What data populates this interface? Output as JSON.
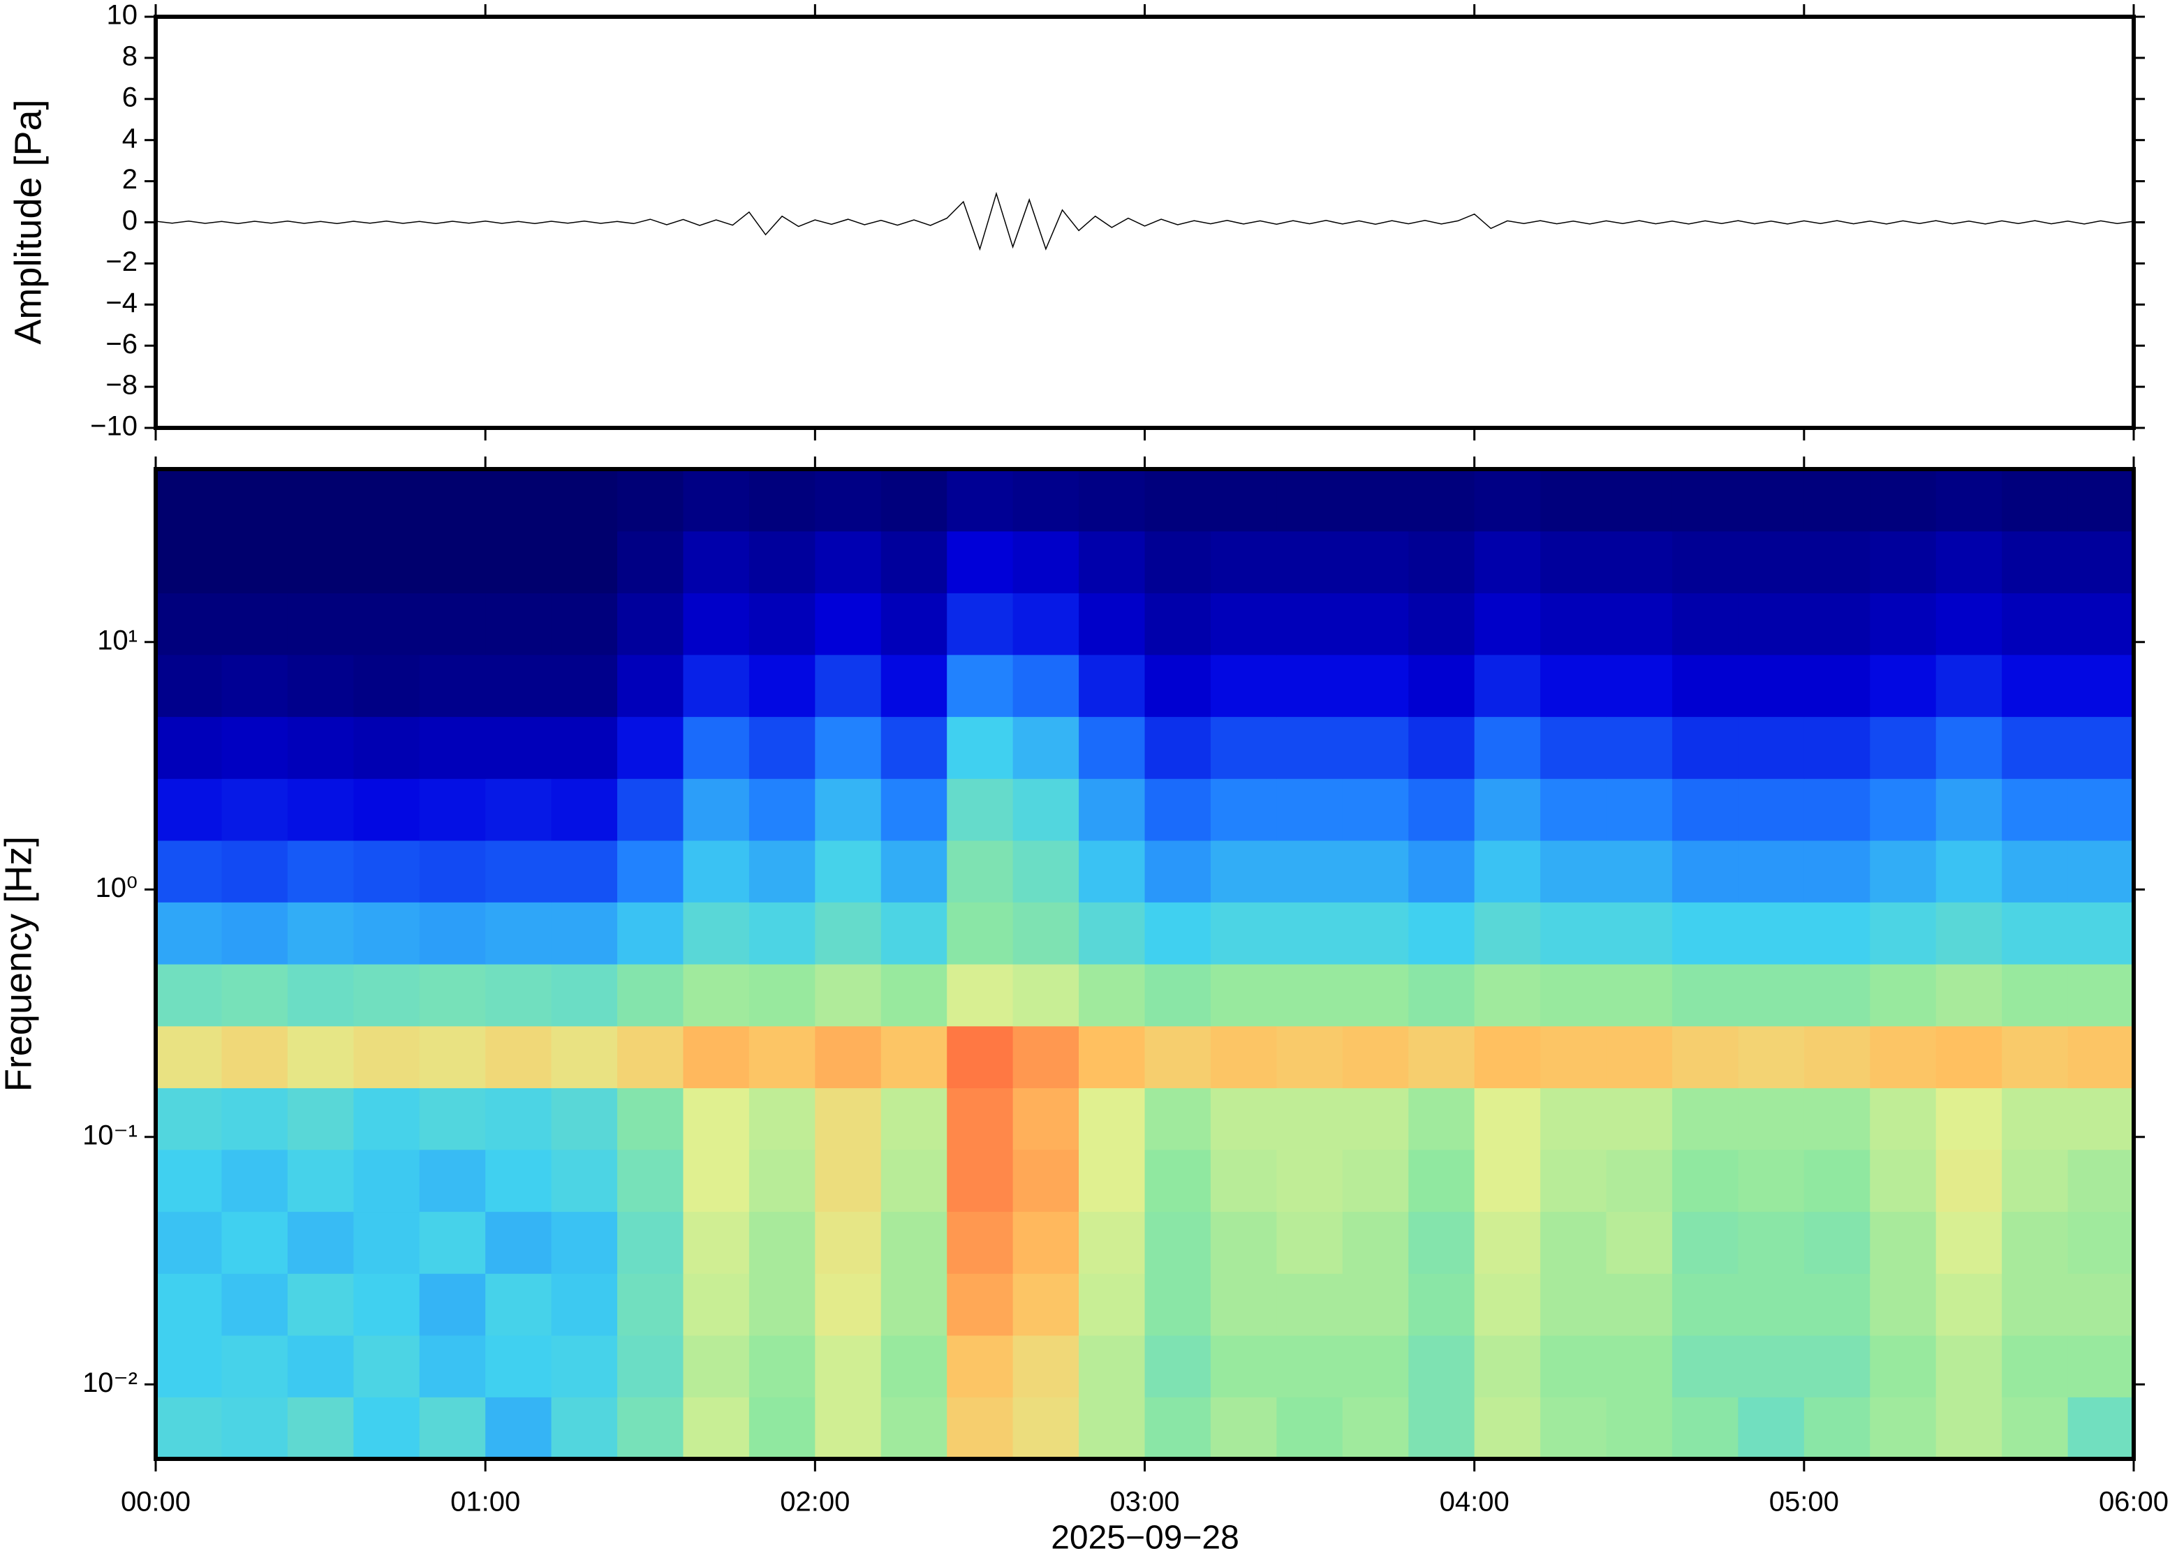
{
  "chart_data": [
    {
      "type": "line",
      "ylabel": "Amplitude [Pa]",
      "color": "#000000",
      "xlim": [
        0,
        6
      ],
      "ylim": [
        -10,
        10
      ],
      "yticks": [
        {
          "value": -10,
          "label": "−10"
        },
        {
          "value": -8,
          "label": "−8"
        },
        {
          "value": -6,
          "label": "−6"
        },
        {
          "value": -4,
          "label": "−4"
        },
        {
          "value": -2,
          "label": "−2"
        },
        0,
        2,
        4,
        6,
        8,
        10
      ],
      "x": [
        0,
        0.05,
        0.1,
        0.15,
        0.2,
        0.25,
        0.3,
        0.35,
        0.4,
        0.45,
        0.5,
        0.55,
        0.6,
        0.65,
        0.7,
        0.75,
        0.8,
        0.85,
        0.9,
        0.95,
        1,
        1.05,
        1.1,
        1.15,
        1.2,
        1.25,
        1.3,
        1.35,
        1.4,
        1.45,
        1.5,
        1.55,
        1.6,
        1.65,
        1.7,
        1.75,
        1.8,
        1.85,
        1.9,
        1.95,
        2,
        2.05,
        2.1,
        2.15,
        2.2,
        2.25,
        2.3,
        2.35,
        2.4,
        2.45,
        2.5,
        2.55,
        2.6,
        2.65,
        2.7,
        2.75,
        2.8,
        2.85,
        2.9,
        2.95,
        3,
        3.05,
        3.1,
        3.15,
        3.2,
        3.25,
        3.3,
        3.35,
        3.4,
        3.45,
        3.5,
        3.55,
        3.6,
        3.65,
        3.7,
        3.75,
        3.8,
        3.85,
        3.9,
        3.95,
        4,
        4.05,
        4.1,
        4.15,
        4.2,
        4.25,
        4.3,
        4.35,
        4.4,
        4.45,
        4.5,
        4.55,
        4.6,
        4.65,
        4.7,
        4.75,
        4.8,
        4.85,
        4.9,
        4.95,
        5,
        5.05,
        5.1,
        5.15,
        5.2,
        5.25,
        5.3,
        5.35,
        5.4,
        5.45,
        5.5,
        5.55,
        5.6,
        5.65,
        5.7,
        5.75,
        5.8,
        5.85,
        5.9,
        5.95,
        6
      ],
      "values": [
        0.05,
        -0.04,
        0.06,
        -0.05,
        0.04,
        -0.06,
        0.05,
        -0.04,
        0.06,
        -0.05,
        0.04,
        -0.06,
        0.05,
        -0.04,
        0.06,
        -0.05,
        0.04,
        -0.06,
        0.05,
        -0.04,
        0.06,
        -0.05,
        0.04,
        -0.06,
        0.05,
        -0.04,
        0.06,
        -0.05,
        0.04,
        -0.06,
        0.15,
        -0.12,
        0.14,
        -0.15,
        0.12,
        -0.14,
        0.5,
        -0.6,
        0.3,
        -0.2,
        0.12,
        -0.1,
        0.15,
        -0.12,
        0.1,
        -0.14,
        0.12,
        -0.15,
        0.2,
        1.0,
        -1.3,
        1.4,
        -1.2,
        1.1,
        -1.3,
        0.6,
        -0.4,
        0.3,
        -0.25,
        0.2,
        -0.18,
        0.15,
        -0.12,
        0.08,
        -0.07,
        0.09,
        -0.08,
        0.07,
        -0.09,
        0.08,
        -0.07,
        0.09,
        -0.08,
        0.07,
        -0.09,
        0.08,
        -0.07,
        0.09,
        -0.08,
        0.07,
        0.4,
        -0.3,
        0.07,
        -0.06,
        0.08,
        -0.07,
        0.06,
        -0.08,
        0.07,
        -0.06,
        0.08,
        -0.07,
        0.06,
        -0.08,
        0.07,
        -0.06,
        0.08,
        -0.07,
        0.06,
        -0.08,
        0.07,
        -0.06,
        0.08,
        -0.07,
        0.06,
        -0.08,
        0.07,
        -0.06,
        0.08,
        -0.07,
        0.06,
        -0.08,
        0.07,
        -0.06,
        0.08,
        -0.07,
        0.06,
        -0.08,
        0.07,
        -0.06,
        0.05
      ]
    },
    {
      "type": "heatmap",
      "ylabel": "Frequency [Hz]",
      "xlabel": "2025−09−28",
      "log_y": true,
      "xlim": [
        0,
        6
      ],
      "ylim": [
        0.005,
        50
      ],
      "xticks": [
        {
          "value": 0,
          "label": "00:00"
        },
        {
          "value": 1,
          "label": "01:00"
        },
        {
          "value": 2,
          "label": "02:00"
        },
        {
          "value": 3,
          "label": "03:00"
        },
        {
          "value": 4,
          "label": "04:00"
        },
        {
          "value": 5,
          "label": "05:00"
        },
        {
          "value": 6,
          "label": "06:00"
        }
      ],
      "yticks": [
        {
          "value": 0.01,
          "label": "10⁻²"
        },
        {
          "value": 0.1,
          "label": "10⁻¹"
        },
        {
          "value": 1,
          "label": "10⁰"
        },
        {
          "value": 10,
          "label": "10¹"
        }
      ],
      "colormap": [
        [
          0,
          "#00006e"
        ],
        [
          15,
          "#0000e0"
        ],
        [
          30,
          "#1e7bff"
        ],
        [
          42,
          "#40d0f0"
        ],
        [
          55,
          "#90e8a0"
        ],
        [
          65,
          "#e0f090"
        ],
        [
          75,
          "#ffc060"
        ],
        [
          85,
          "#ff7040"
        ],
        [
          100,
          "#ff5070"
        ]
      ],
      "x_edges": [
        0,
        0.2,
        0.4,
        0.6,
        0.8,
        1,
        1.2,
        1.4,
        1.6,
        1.8,
        2,
        2.2,
        2.4,
        2.6,
        2.8,
        3,
        3.2,
        3.4,
        3.6,
        3.8,
        4,
        4.2,
        4.4,
        4.6,
        4.8,
        5,
        5.2,
        5.4,
        5.6,
        5.8,
        6
      ],
      "y_edges": [
        0.005,
        0.0089,
        0.0158,
        0.0281,
        0.05,
        0.089,
        0.158,
        0.281,
        0.5,
        0.89,
        1.58,
        2.81,
        5,
        8.9,
        15.8,
        28.1,
        50
      ],
      "values": [
        [
          45,
          44,
          47,
          42,
          46,
          38,
          45,
          51,
          62,
          55,
          63,
          57,
          72,
          69,
          60,
          54,
          58,
          55,
          57,
          52,
          61,
          57,
          56,
          54,
          50,
          54,
          57,
          60,
          57,
          50
        ],
        [
          42,
          43,
          41,
          44,
          40,
          42,
          43,
          49,
          60,
          56,
          63,
          56,
          74,
          70,
          60,
          52,
          56,
          56,
          56,
          52,
          60,
          56,
          56,
          52,
          52,
          52,
          56,
          60,
          56,
          56
        ],
        [
          42,
          40,
          44,
          42,
          38,
          43,
          41,
          50,
          62,
          58,
          66,
          58,
          78,
          74,
          62,
          54,
          58,
          58,
          58,
          54,
          62,
          58,
          58,
          54,
          54,
          54,
          58,
          62,
          58,
          58
        ],
        [
          40,
          42,
          39,
          41,
          43,
          38,
          40,
          49,
          63,
          58,
          67,
          58,
          80,
          76,
          63,
          54,
          58,
          60,
          58,
          53,
          63,
          58,
          60,
          53,
          54,
          53,
          58,
          64,
          58,
          57
        ],
        [
          42,
          40,
          43,
          41,
          39,
          42,
          44,
          51,
          65,
          60,
          69,
          60,
          82,
          78,
          65,
          55,
          60,
          61,
          60,
          55,
          65,
          60,
          59,
          55,
          56,
          55,
          60,
          66,
          60,
          58
        ],
        [
          45,
          44,
          46,
          43,
          45,
          44,
          46,
          53,
          65,
          61,
          69,
          61,
          82,
          77,
          65,
          57,
          61,
          61,
          61,
          57,
          65,
          61,
          61,
          57,
          57,
          57,
          61,
          65,
          61,
          61
        ],
        [
          68,
          70,
          67,
          69,
          68,
          70,
          68,
          71,
          76,
          74,
          77,
          74,
          84,
          80,
          75,
          72,
          74,
          73,
          74,
          72,
          75,
          74,
          74,
          72,
          71,
          72,
          74,
          75,
          73,
          74
        ],
        [
          50,
          51,
          49,
          50,
          51,
          50,
          49,
          53,
          57,
          56,
          59,
          56,
          64,
          62,
          57,
          54,
          56,
          56,
          56,
          54,
          57,
          56,
          56,
          54,
          54,
          54,
          56,
          58,
          56,
          56
        ],
        [
          36,
          35,
          37,
          36,
          35,
          36,
          36,
          40,
          46,
          44,
          48,
          44,
          54,
          52,
          46,
          42,
          44,
          44,
          44,
          42,
          46,
          44,
          44,
          42,
          42,
          42,
          44,
          46,
          44,
          44
        ],
        [
          25,
          24,
          26,
          25,
          24,
          25,
          25,
          31,
          40,
          37,
          43,
          37,
          52,
          49,
          40,
          34,
          37,
          37,
          37,
          34,
          40,
          37,
          37,
          34,
          34,
          34,
          37,
          40,
          37,
          37
        ],
        [
          17,
          18,
          17,
          16,
          17,
          18,
          17,
          24,
          35,
          31,
          38,
          31,
          48,
          45,
          35,
          28,
          31,
          31,
          31,
          28,
          35,
          31,
          31,
          28,
          28,
          28,
          31,
          35,
          31,
          31
        ],
        [
          10,
          11,
          10,
          9,
          10,
          10,
          10,
          17,
          28,
          24,
          31,
          24,
          42,
          38,
          28,
          21,
          24,
          24,
          24,
          21,
          28,
          24,
          24,
          21,
          21,
          21,
          24,
          28,
          24,
          24
        ],
        [
          4,
          5,
          4,
          3,
          4,
          4,
          4,
          10,
          19,
          16,
          22,
          16,
          31,
          28,
          19,
          13,
          16,
          16,
          16,
          13,
          19,
          16,
          16,
          13,
          13,
          13,
          16,
          19,
          16,
          16
        ],
        [
          2,
          2,
          2,
          2,
          2,
          2,
          2,
          6,
          12,
          10,
          14,
          10,
          20,
          18,
          12,
          8,
          10,
          10,
          10,
          8,
          12,
          10,
          10,
          8,
          8,
          8,
          10,
          12,
          10,
          10
        ],
        [
          0,
          0,
          0,
          0,
          0,
          0,
          0,
          3,
          8,
          6,
          9,
          6,
          14,
          12,
          8,
          5,
          6,
          6,
          6,
          5,
          8,
          6,
          6,
          5,
          5,
          5,
          6,
          8,
          6,
          6
        ],
        [
          0,
          0,
          0,
          0,
          0,
          0,
          0,
          1,
          3,
          2,
          3,
          2,
          5,
          4,
          3,
          2,
          2,
          2,
          2,
          2,
          3,
          2,
          2,
          2,
          2,
          2,
          2,
          3,
          2,
          2
        ]
      ]
    }
  ]
}
